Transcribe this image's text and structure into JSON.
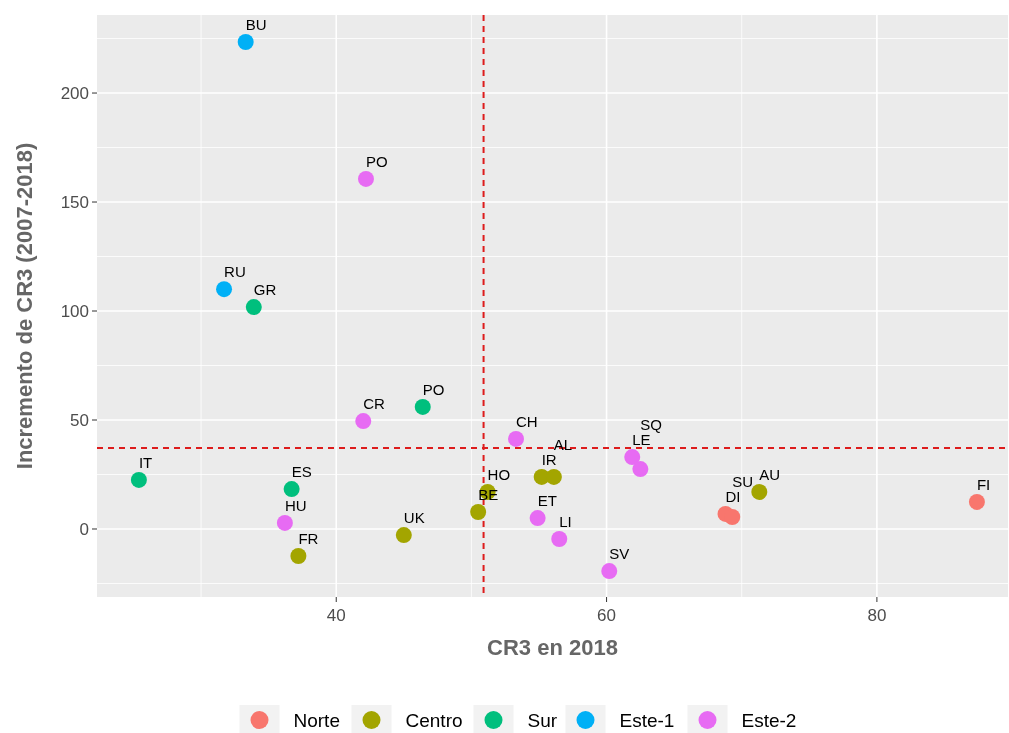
{
  "chart_data": {
    "type": "scatter",
    "xlabel": "CR3 en 2018",
    "ylabel": "Incremento de CR3 (2007-2018)",
    "xlim": [
      22.3,
      89.7
    ],
    "ylim": [
      -31.2,
      235.8
    ],
    "xticks": [
      40,
      60,
      80
    ],
    "yticks": [
      0,
      50,
      100,
      150,
      200
    ],
    "grid": true,
    "legend": "bottom",
    "marker": "circle",
    "series": [
      {
        "name": "Norte",
        "color": "#f8766d",
        "x": [
          68.8,
          69.3,
          87.4
        ],
        "values": [
          6.9,
          5.5,
          12.4
        ]
      },
      {
        "name": "Centro",
        "color": "#a3a500",
        "x": [
          37.2,
          45.0,
          50.5,
          51.2,
          55.2,
          56.1,
          71.3
        ],
        "values": [
          -12.4,
          -2.8,
          7.8,
          17,
          23.9,
          23.9,
          17
        ]
      },
      {
        "name": "Sur",
        "color": "#00bf7d",
        "x": [
          33.9,
          46.4,
          25.4,
          36.7
        ],
        "values": [
          101.8,
          56,
          22.5,
          18.3
        ]
      },
      {
        "name": "Este-1",
        "color": "#00b0f6",
        "x": [
          33.3,
          31.7
        ],
        "values": [
          223.4,
          110
        ]
      },
      {
        "name": "Este-2",
        "color": "#e76bf3",
        "x": [
          42.2,
          42.0,
          36.2,
          53.3,
          54.9,
          56.5,
          60.2,
          61.9,
          62.5
        ],
        "values": [
          160.6,
          49.5,
          2.8,
          41.3,
          5,
          -4.6,
          -19.3,
          33,
          27.5
        ]
      }
    ],
    "ref_lines": [
      {
        "axis": "x",
        "value": 50.9,
        "color": "#dd1c1c",
        "line_style": "dashed"
      },
      {
        "axis": "y",
        "value": 37.2,
        "color": "#dd1c1c",
        "line_style": "dashed"
      }
    ],
    "annotations": [
      {
        "text": "DI",
        "x": 68.8,
        "y": 6.9
      },
      {
        "text": "SU",
        "x": 69.3,
        "y": 5.5
      },
      {
        "text": "FI",
        "x": 87.4,
        "y": 12.4
      },
      {
        "text": "FR",
        "x": 37.2,
        "y": -12.4
      },
      {
        "text": "UK",
        "x": 45.0,
        "y": -2.8
      },
      {
        "text": "BE",
        "x": 50.5,
        "y": 7.8
      },
      {
        "text": "HO",
        "x": 51.2,
        "y": 17
      },
      {
        "text": "IR",
        "x": 55.2,
        "y": 23.9
      },
      {
        "text": "AL",
        "x": 56.1,
        "y": 23.9
      },
      {
        "text": "AU",
        "x": 71.3,
        "y": 17
      },
      {
        "text": "GR",
        "x": 33.9,
        "y": 101.8
      },
      {
        "text": "PO",
        "x": 46.4,
        "y": 56
      },
      {
        "text": "IT",
        "x": 25.4,
        "y": 22.5
      },
      {
        "text": "ES",
        "x": 36.7,
        "y": 18.3
      },
      {
        "text": "BU",
        "x": 33.3,
        "y": 223.4
      },
      {
        "text": "RU",
        "x": 31.7,
        "y": 110
      },
      {
        "text": "PO",
        "x": 42.2,
        "y": 160.6
      },
      {
        "text": "CR",
        "x": 42.0,
        "y": 49.5
      },
      {
        "text": "HU",
        "x": 36.2,
        "y": 2.8
      },
      {
        "text": "CH",
        "x": 53.3,
        "y": 41.3
      },
      {
        "text": "ET",
        "x": 54.9,
        "y": 5
      },
      {
        "text": "LI",
        "x": 56.5,
        "y": -4.6
      },
      {
        "text": "SV",
        "x": 60.2,
        "y": -19.3
      },
      {
        "text": "LE",
        "x": 61.9,
        "y": 33
      },
      {
        "text": "SQ",
        "x": 62.5,
        "y": 27.5
      }
    ]
  }
}
